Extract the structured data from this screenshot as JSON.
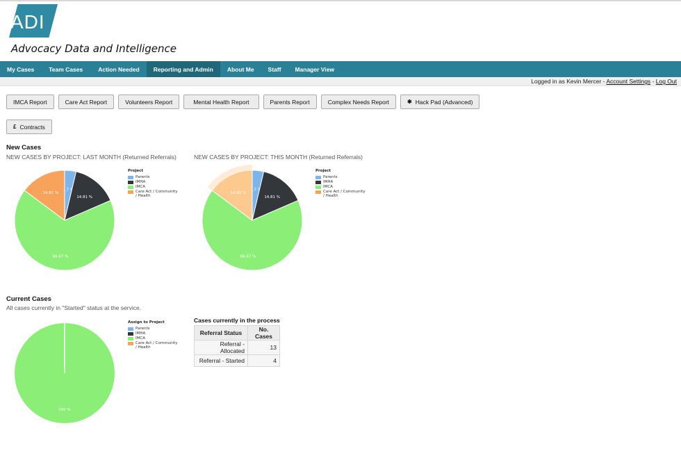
{
  "header": {
    "logo": "ADI",
    "tagline": "Advocacy Data and Intelligence"
  },
  "nav": [
    {
      "label": "My Cases",
      "active": false
    },
    {
      "label": "Team Cases",
      "active": false
    },
    {
      "label": "Action Needed",
      "active": false
    },
    {
      "label": "Reporting and Admin",
      "active": true
    },
    {
      "label": "About Me",
      "active": false
    },
    {
      "label": "Staff",
      "active": false
    },
    {
      "label": "Manager View",
      "active": false
    }
  ],
  "userbar": {
    "logged_in": "Logged in as Kevin Mercer - ",
    "account_settings": "Account Settings",
    "separator": " - ",
    "logout": "Log Out"
  },
  "buttons": {
    "imca": "IMCA Report",
    "care_act": "Care Act Report",
    "volunteers": "Volunteers Report",
    "mental_health": "Mental Health Report",
    "parents": "Parents Report",
    "complex_needs": "Complex Needs Report",
    "hack_pad": "Hack Pad (Advanced)",
    "hack_pad_icon": "✱",
    "contracts": "Contracts",
    "contracts_icon": "£"
  },
  "new_cases": {
    "title": "New Cases",
    "last_month_subtitle": "NEW CASES BY PROJECT: LAST MONTH (Returned Referrals)",
    "this_month_subtitle": "NEW CASES BY PROJECT: THIS MONTH (Returned Referrals)"
  },
  "current_cases": {
    "title": "Current Cases",
    "subtitle": "All cases currently in \"Started\" status at the service.",
    "table_title": "Cases currently in the process",
    "columns": [
      "Referral Status",
      "No. Cases"
    ],
    "rows": [
      {
        "status": "Referral - Allocated",
        "count": "13"
      },
      {
        "status": "Referral - Started",
        "count": "4"
      }
    ]
  },
  "colors": {
    "parents": "#7cb5ec",
    "imha": "#33363b",
    "imca": "#8bee76",
    "care_act": "#f7a35c",
    "nav": "#2a8197"
  },
  "chart_data": [
    {
      "type": "pie",
      "title": "NEW CASES BY PROJECT: LAST MONTH (Returned Referrals)",
      "legend_title": "Project",
      "categories": [
        "Parents",
        "IMHA",
        "IMCA",
        "Care Act / Community / Health"
      ],
      "values": [
        3.7,
        14.81,
        66.67,
        14.81
      ],
      "labels": [
        "3.7 %",
        "14.81 %",
        "66.67 %",
        "14.81 %"
      ],
      "colors": [
        "#7cb5ec",
        "#33363b",
        "#8bee76",
        "#f7a35c"
      ],
      "highlighted": null
    },
    {
      "type": "pie",
      "title": "NEW CASES BY PROJECT: THIS MONTH (Returned Referrals)",
      "legend_title": "Project",
      "categories": [
        "Parents",
        "IMHA",
        "IMCA",
        "Care Act / Community / Health"
      ],
      "values": [
        3.7,
        14.81,
        66.67,
        14.81
      ],
      "labels": [
        "3.7 %",
        "14.81 %",
        "66.67 %",
        "14.81 %"
      ],
      "colors": [
        "#7cb5ec",
        "#33363b",
        "#8bee76",
        "#fcc98f"
      ],
      "highlighted": 3
    },
    {
      "type": "pie",
      "title": "Current Cases",
      "legend_title": "Assign to Project",
      "categories": [
        "Parents",
        "IMHA",
        "IMCA",
        "Care Act / Community / Health"
      ],
      "values": [
        0,
        0,
        100,
        0
      ],
      "labels": [
        "0 %",
        "",
        "100 %",
        ""
      ],
      "colors": [
        "#7cb5ec",
        "#33363b",
        "#8bee76",
        "#f7a35c"
      ],
      "highlighted": null
    }
  ]
}
